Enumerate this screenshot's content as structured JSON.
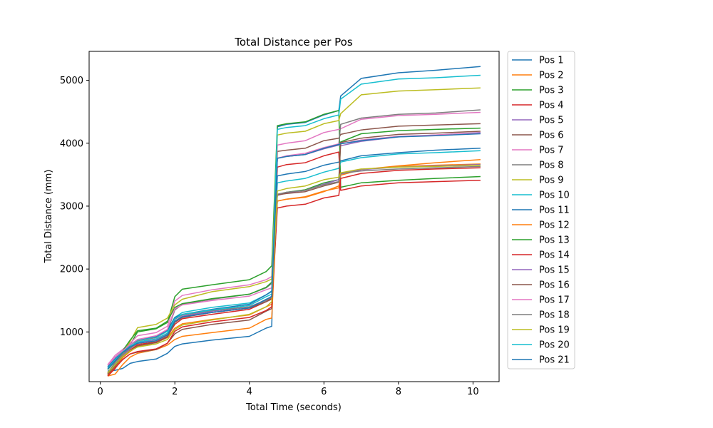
{
  "chart_data": {
    "type": "line",
    "title": "Total Distance per Pos",
    "xlabel": "Total Time (seconds)",
    "ylabel": "Total Distance (mm)",
    "xlim": [
      -0.3,
      10.7
    ],
    "ylim": [
      210,
      5460
    ],
    "xticks": [
      0,
      2,
      4,
      6,
      8,
      10
    ],
    "yticks": [
      1000,
      2000,
      3000,
      4000,
      5000
    ],
    "grid": false,
    "legend_position": "outside-right",
    "x": [
      0.2,
      0.4,
      0.6,
      0.8,
      1.0,
      1.5,
      1.8,
      2.0,
      2.2,
      3.0,
      4.0,
      4.45,
      4.6,
      4.75,
      5.0,
      5.5,
      6.0,
      6.4,
      6.45,
      7.0,
      8.0,
      9.0,
      10.2
    ],
    "series": [
      {
        "name": "Pos 1",
        "color": "#1f77b4",
        "values": [
          380,
          390,
          420,
          500,
          530,
          570,
          660,
          770,
          810,
          870,
          930,
          1060,
          1090,
          4260,
          4300,
          4330,
          4450,
          4520,
          4750,
          5030,
          5120,
          5160,
          5220
        ]
      },
      {
        "name": "Pos 2",
        "color": "#ff7f0e",
        "values": [
          300,
          330,
          480,
          600,
          660,
          720,
          790,
          880,
          930,
          990,
          1060,
          1200,
          1220,
          3080,
          3110,
          3140,
          3230,
          3320,
          3490,
          3580,
          3640,
          3690,
          3740
        ]
      },
      {
        "name": "Pos 3",
        "color": "#2ca02c",
        "values": [
          320,
          430,
          600,
          800,
          1000,
          1050,
          1150,
          1560,
          1680,
          1750,
          1830,
          1960,
          2050,
          4280,
          4310,
          4340,
          4460,
          4520,
          3300,
          3370,
          3410,
          3440,
          3470
        ]
      },
      {
        "name": "Pos 4",
        "color": "#d62728",
        "values": [
          300,
          420,
          590,
          710,
          800,
          840,
          930,
          1120,
          1210,
          1280,
          1360,
          1480,
          1540,
          3620,
          3660,
          3690,
          3800,
          3860,
          3250,
          3320,
          3370,
          3390,
          3410
        ]
      },
      {
        "name": "Pos 5",
        "color": "#9467bd",
        "values": [
          330,
          450,
          620,
          730,
          840,
          880,
          960,
          1160,
          1240,
          1310,
          1380,
          1500,
          1560,
          3760,
          3790,
          3820,
          3910,
          3970,
          3960,
          4030,
          4100,
          4130,
          4170
        ]
      },
      {
        "name": "Pos 6",
        "color": "#8c564b",
        "values": [
          310,
          430,
          560,
          650,
          680,
          720,
          820,
          970,
          1040,
          1120,
          1190,
          1330,
          1370,
          3870,
          3890,
          3920,
          4040,
          4080,
          4140,
          4210,
          4270,
          4290,
          4310
        ]
      },
      {
        "name": "Pos 7",
        "color": "#e377c2",
        "values": [
          480,
          630,
          720,
          820,
          940,
          990,
          1090,
          1490,
          1580,
          1670,
          1750,
          1830,
          1880,
          3970,
          4000,
          4040,
          4170,
          4220,
          4230,
          4380,
          4440,
          4460,
          4490
        ]
      },
      {
        "name": "Pos 8",
        "color": "#7f7f7f",
        "values": [
          350,
          520,
          660,
          760,
          860,
          910,
          1010,
          1350,
          1440,
          1520,
          1600,
          1700,
          1770,
          3760,
          3790,
          3820,
          3920,
          3980,
          4300,
          4400,
          4460,
          4480,
          4530
        ]
      },
      {
        "name": "Pos 9",
        "color": "#bcbd22",
        "values": [
          330,
          480,
          650,
          850,
          1070,
          1120,
          1220,
          1430,
          1520,
          1640,
          1720,
          1800,
          1840,
          4130,
          4160,
          4190,
          4310,
          4360,
          4470,
          4770,
          4830,
          4850,
          4880
        ]
      },
      {
        "name": "Pos 10",
        "color": "#17becf",
        "values": [
          450,
          600,
          700,
          800,
          870,
          920,
          1010,
          1230,
          1310,
          1390,
          1460,
          1590,
          1640,
          3370,
          3400,
          3440,
          3540,
          3600,
          3700,
          3770,
          3830,
          3850,
          3880
        ]
      },
      {
        "name": "Pos 11",
        "color": "#1f77b4",
        "values": [
          440,
          580,
          690,
          790,
          880,
          930,
          1030,
          1230,
          1280,
          1360,
          1440,
          1590,
          1650,
          3480,
          3510,
          3550,
          3650,
          3700,
          3720,
          3800,
          3850,
          3890,
          3920
        ]
      },
      {
        "name": "Pos 12",
        "color": "#ff7f0e",
        "values": [
          320,
          440,
          590,
          690,
          770,
          830,
          910,
          1060,
          1130,
          1200,
          1270,
          1400,
          1440,
          3080,
          3110,
          3150,
          3240,
          3290,
          3510,
          3580,
          3630,
          3650,
          3670
        ]
      },
      {
        "name": "Pos 13",
        "color": "#2ca02c",
        "values": [
          400,
          540,
          700,
          870,
          1020,
          1060,
          1170,
          1390,
          1450,
          1530,
          1600,
          1710,
          1790,
          3180,
          3220,
          3260,
          3370,
          3420,
          4020,
          4150,
          4200,
          4220,
          4240
        ]
      },
      {
        "name": "Pos 14",
        "color": "#d62728",
        "values": [
          300,
          430,
          560,
          650,
          690,
          730,
          820,
          1010,
          1080,
          1160,
          1230,
          1340,
          1400,
          2970,
          3000,
          3030,
          3130,
          3170,
          3440,
          3520,
          3570,
          3590,
          3610
        ]
      },
      {
        "name": "Pos 15",
        "color": "#9467bd",
        "values": [
          340,
          480,
          640,
          740,
          830,
          880,
          980,
          1170,
          1250,
          1330,
          1400,
          1510,
          1570,
          3170,
          3210,
          3250,
          3350,
          3420,
          3510,
          3580,
          3620,
          3640,
          3660
        ]
      },
      {
        "name": "Pos 16",
        "color": "#8c564b",
        "values": [
          330,
          460,
          610,
          700,
          780,
          830,
          920,
          1150,
          1230,
          1310,
          1380,
          1480,
          1520,
          3180,
          3200,
          3230,
          3320,
          3380,
          4010,
          4080,
          4140,
          4160,
          4190
        ]
      },
      {
        "name": "Pos 17",
        "color": "#e377c2",
        "values": [
          470,
          600,
          700,
          800,
          880,
          940,
          1040,
          1370,
          1430,
          1500,
          1570,
          1670,
          1700,
          3760,
          3800,
          3840,
          3930,
          3990,
          3990,
          4050,
          4110,
          4130,
          4160
        ]
      },
      {
        "name": "Pos 18",
        "color": "#7f7f7f",
        "values": [
          360,
          490,
          640,
          740,
          820,
          860,
          960,
          1200,
          1270,
          1340,
          1400,
          1500,
          1550,
          3190,
          3220,
          3250,
          3340,
          3390,
          3520,
          3560,
          3590,
          3610,
          3630
        ]
      },
      {
        "name": "Pos 19",
        "color": "#bcbd22",
        "values": [
          350,
          480,
          610,
          700,
          760,
          810,
          880,
          1040,
          1110,
          1190,
          1280,
          1400,
          1480,
          3240,
          3280,
          3320,
          3420,
          3460,
          3530,
          3590,
          3620,
          3630,
          3650
        ]
      },
      {
        "name": "Pos 20",
        "color": "#17becf",
        "values": [
          420,
          560,
          680,
          770,
          840,
          890,
          980,
          1210,
          1280,
          1350,
          1420,
          1560,
          1600,
          4220,
          4250,
          4280,
          4390,
          4450,
          4700,
          4940,
          5020,
          5040,
          5080
        ]
      },
      {
        "name": "Pos 21",
        "color": "#1f77b4",
        "values": [
          410,
          540,
          670,
          760,
          820,
          860,
          950,
          1170,
          1240,
          1310,
          1380,
          1520,
          1560,
          3760,
          3790,
          3820,
          3920,
          3980,
          3990,
          4040,
          4100,
          4120,
          4150
        ]
      }
    ]
  }
}
